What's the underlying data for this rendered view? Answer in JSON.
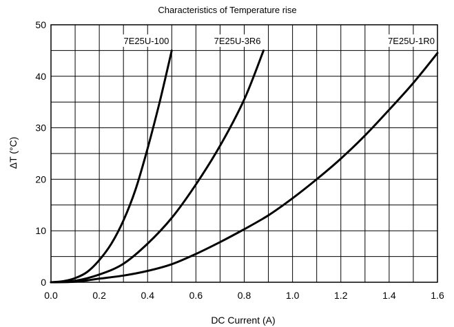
{
  "chart_data": {
    "type": "line",
    "title": "Characteristics of Temperature rise",
    "xlabel": "DC Current (A)",
    "ylabel": "ΔT (°C)",
    "xlim": [
      0,
      1.6
    ],
    "ylim": [
      0,
      50
    ],
    "x_ticks": [
      "0.0",
      "0.2",
      "0.4",
      "0.6",
      "0.8",
      "1.0",
      "1.2",
      "1.4",
      "1.6"
    ],
    "y_ticks": [
      "0",
      "10",
      "20",
      "30",
      "40",
      "50"
    ],
    "x_minor_grid_step": 0.1,
    "y_minor_grid_step": 5,
    "grid": true,
    "legend": "inline labels at top of each curve",
    "series": [
      {
        "name": "7E25U-100",
        "points": [
          [
            0.0,
            0.0
          ],
          [
            0.05,
            0.2
          ],
          [
            0.1,
            0.8
          ],
          [
            0.15,
            2.0
          ],
          [
            0.2,
            4.3
          ],
          [
            0.25,
            7.5
          ],
          [
            0.3,
            12.0
          ],
          [
            0.35,
            18.0
          ],
          [
            0.4,
            26.0
          ],
          [
            0.45,
            35.0
          ],
          [
            0.5,
            45.0
          ]
        ]
      },
      {
        "name": "7E25U-3R6",
        "points": [
          [
            0.0,
            0.0
          ],
          [
            0.1,
            0.3
          ],
          [
            0.2,
            1.5
          ],
          [
            0.3,
            3.6
          ],
          [
            0.4,
            7.5
          ],
          [
            0.5,
            12.5
          ],
          [
            0.6,
            19.0
          ],
          [
            0.7,
            26.5
          ],
          [
            0.8,
            35.5
          ],
          [
            0.88,
            45.0
          ]
        ]
      },
      {
        "name": "7E25U-1R0",
        "points": [
          [
            0.0,
            0.0
          ],
          [
            0.1,
            0.1
          ],
          [
            0.2,
            0.7
          ],
          [
            0.3,
            1.3
          ],
          [
            0.4,
            2.2
          ],
          [
            0.5,
            3.5
          ],
          [
            0.6,
            5.5
          ],
          [
            0.7,
            7.8
          ],
          [
            0.8,
            10.3
          ],
          [
            0.9,
            13.0
          ],
          [
            1.0,
            16.3
          ],
          [
            1.1,
            20.0
          ],
          [
            1.2,
            24.0
          ],
          [
            1.3,
            28.5
          ],
          [
            1.4,
            33.5
          ],
          [
            1.5,
            38.7
          ],
          [
            1.6,
            44.5
          ]
        ]
      }
    ]
  }
}
